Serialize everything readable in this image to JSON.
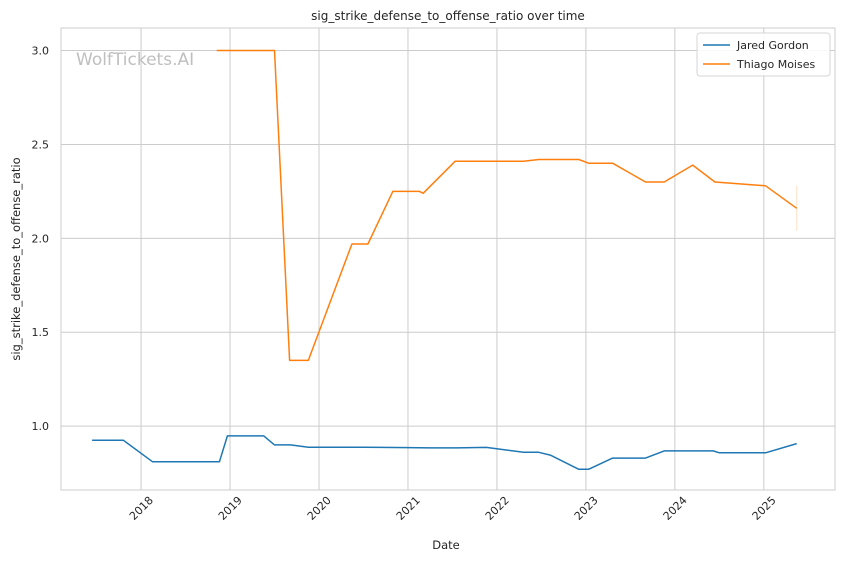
{
  "chart_data": {
    "type": "line",
    "title": "sig_strike_defense_to_offense_ratio over time",
    "xlabel": "Date",
    "ylabel": "sig_strike_defense_to_offense_ratio",
    "watermark": "WolfTickets.AI",
    "grid": true,
    "legend_position": "top-right",
    "xlim": [
      2017.1,
      2025.8
    ],
    "ylim": [
      0.66,
      3.12
    ],
    "x_ticks": [
      2018,
      2019,
      2020,
      2021,
      2022,
      2023,
      2024,
      2025
    ],
    "x_tick_labels": [
      "2018",
      "2019",
      "2020",
      "2021",
      "2022",
      "2023",
      "2024",
      "2025"
    ],
    "y_ticks": [
      1.0,
      1.5,
      2.0,
      2.5,
      3.0
    ],
    "y_tick_labels": [
      "1.0",
      "1.5",
      "2.0",
      "2.5",
      "3.0"
    ],
    "series": [
      {
        "name": "Jared Gordon",
        "color": "#1f77b4",
        "x": [
          2017.45,
          2017.8,
          2018.13,
          2018.88,
          2018.97,
          2019.38,
          2019.5,
          2019.68,
          2019.88,
          2020.5,
          2021.0,
          2021.25,
          2021.55,
          2021.88,
          2022.3,
          2022.47,
          2022.6,
          2022.92,
          2023.03,
          2023.3,
          2023.67,
          2023.88,
          2024.43,
          2024.5,
          2025.02,
          2025.37
        ],
        "y": [
          0.925,
          0.925,
          0.81,
          0.81,
          0.948,
          0.948,
          0.9,
          0.9,
          0.888,
          0.888,
          0.886,
          0.884,
          0.884,
          0.887,
          0.861,
          0.861,
          0.846,
          0.77,
          0.77,
          0.83,
          0.83,
          0.868,
          0.868,
          0.858,
          0.858,
          0.907
        ]
      },
      {
        "name": "Thiago Moises",
        "color": "#ff7f0e",
        "x": [
          2018.85,
          2019.5,
          2019.67,
          2019.88,
          2020.37,
          2020.55,
          2020.83,
          2021.13,
          2021.17,
          2021.53,
          2021.88,
          2022.3,
          2022.47,
          2022.92,
          2023.03,
          2023.3,
          2023.67,
          2023.88,
          2024.2,
          2024.45,
          2025.02,
          2025.37
        ],
        "y": [
          3.0,
          3.0,
          1.35,
          1.35,
          1.97,
          1.97,
          2.25,
          2.25,
          2.24,
          2.41,
          2.41,
          2.41,
          2.42,
          2.42,
          2.4,
          2.4,
          2.3,
          2.3,
          2.39,
          2.3,
          2.28,
          2.16
        ]
      }
    ]
  }
}
